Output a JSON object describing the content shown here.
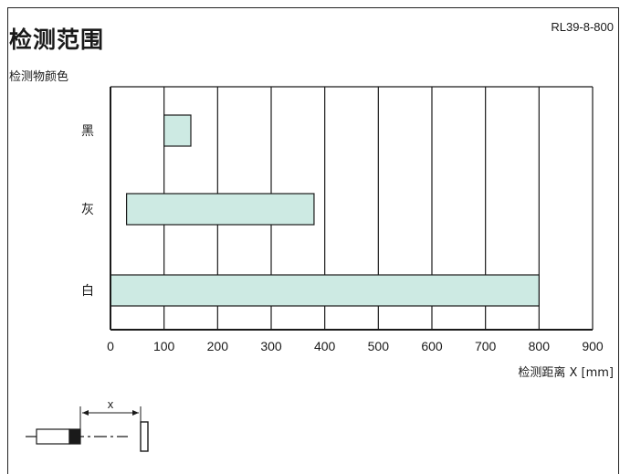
{
  "header": {
    "title": "检测范围",
    "code": "RL39-8-800"
  },
  "chart_data": {
    "type": "bar",
    "orientation": "horizontal",
    "ylabel": "检测物颜色",
    "xlabel": "检测距离 X [mm]",
    "xlim": [
      0,
      900
    ],
    "xticks": [
      0,
      100,
      200,
      300,
      400,
      500,
      600,
      700,
      800,
      900
    ],
    "grid": true,
    "categories": [
      "黑",
      "灰",
      "白"
    ],
    "ranges": [
      {
        "category": "黑",
        "start": 100,
        "end": 150
      },
      {
        "category": "灰",
        "start": 30,
        "end": 380
      },
      {
        "category": "白",
        "start": 0,
        "end": 800
      }
    ],
    "bar_color": "#cdeae3",
    "diagram_label": "x"
  }
}
